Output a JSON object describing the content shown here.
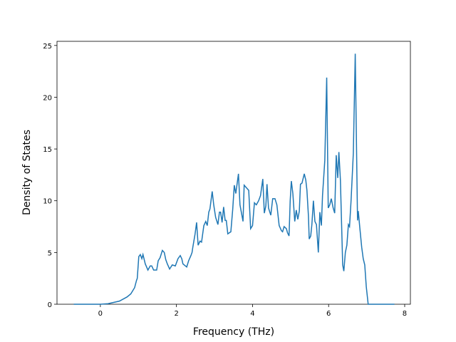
{
  "chart_data": {
    "type": "line",
    "x_label": "Frequency (THz)",
    "y_label": "Density of States",
    "xlim": [
      -1.14,
      8.15
    ],
    "ylim": [
      0,
      25.4
    ],
    "xticks": [
      0,
      2,
      4,
      6,
      8
    ],
    "yticks": [
      0,
      5,
      10,
      15,
      20,
      25
    ],
    "series": [
      {
        "color": "#1f77b4",
        "x": [
          -0.7,
          0,
          0.2,
          0.5,
          0.7,
          0.8,
          0.9,
          0.95,
          0.97,
          1.01,
          1.05,
          1.09,
          1.12,
          1.18,
          1.25,
          1.31,
          1.35,
          1.4,
          1.48,
          1.52,
          1.57,
          1.63,
          1.68,
          1.72,
          1.76,
          1.82,
          1.89,
          1.97,
          2.04,
          2.1,
          2.14,
          2.17,
          2.27,
          2.32,
          2.38,
          2.41,
          2.43,
          2.49,
          2.53,
          2.57,
          2.62,
          2.66,
          2.72,
          2.77,
          2.81,
          2.85,
          2.88,
          2.94,
          2.98,
          3.03,
          3.09,
          3.13,
          3.16,
          3.2,
          3.24,
          3.28,
          3.31,
          3.35,
          3.43,
          3.48,
          3.52,
          3.56,
          3.63,
          3.67,
          3.75,
          3.78,
          3.9,
          3.95,
          4.0,
          4.05,
          4.1,
          4.16,
          4.21,
          4.27,
          4.31,
          4.35,
          4.38,
          4.42,
          4.48,
          4.53,
          4.59,
          4.64,
          4.7,
          4.76,
          4.79,
          4.83,
          4.89,
          4.92,
          4.96,
          4.99,
          5.02,
          5.06,
          5.11,
          5.15,
          5.19,
          5.23,
          5.26,
          5.3,
          5.36,
          5.4,
          5.43,
          5.47,
          5.49,
          5.53,
          5.56,
          5.6,
          5.64,
          5.68,
          5.73,
          5.77,
          5.81,
          5.84,
          5.9,
          5.95,
          5.99,
          6.03,
          6.07,
          6.12,
          6.16,
          6.2,
          6.24,
          6.27,
          6.31,
          6.37,
          6.4,
          6.44,
          6.48,
          6.52,
          6.55,
          6.59,
          6.65,
          6.7,
          6.76,
          6.78,
          6.82,
          6.87,
          6.91,
          6.95,
          6.99,
          7.04,
          7.73
        ],
        "values": [
          0,
          0,
          0.05,
          0.3,
          0.7,
          1.0,
          1.6,
          2.3,
          2.5,
          4.6,
          4.8,
          4.4,
          4.8,
          3.9,
          3.3,
          3.7,
          3.7,
          3.3,
          3.3,
          4.2,
          4.5,
          5.2,
          5.0,
          4.3,
          3.9,
          3.4,
          3.8,
          3.7,
          4.4,
          4.7,
          4.4,
          3.9,
          3.6,
          4.2,
          4.7,
          5.0,
          5.5,
          6.8,
          7.9,
          5.7,
          6.1,
          6.0,
          7.6,
          8.0,
          7.6,
          8.9,
          9.2,
          10.9,
          9.6,
          8.4,
          7.7,
          8.9,
          8.9,
          7.9,
          9.4,
          8.1,
          8.1,
          6.8,
          7.0,
          9.2,
          11.5,
          10.7,
          12.6,
          9.6,
          8.0,
          11.5,
          11.0,
          7.3,
          7.6,
          9.8,
          9.6,
          10.0,
          10.5,
          12.1,
          8.8,
          9.5,
          11.6,
          9.3,
          8.6,
          10.2,
          10.2,
          9.6,
          7.6,
          7.1,
          7.0,
          7.5,
          7.3,
          6.9,
          6.6,
          10.0,
          11.9,
          10.7,
          8.0,
          9.1,
          8.2,
          9.0,
          11.6,
          11.7,
          12.6,
          12.0,
          11.0,
          8.5,
          6.3,
          6.6,
          7.7,
          10.0,
          8.0,
          7.7,
          5.0,
          8.9,
          7.6,
          10.5,
          13.9,
          21.9,
          9.3,
          9.6,
          10.2,
          9.3,
          8.8,
          14.4,
          12.2,
          14.7,
          12.0,
          3.8,
          3.2,
          5.0,
          5.7,
          7.7,
          7.5,
          10.0,
          14.6,
          24.2,
          8.1,
          9.0,
          7.4,
          5.5,
          4.4,
          3.8,
          1.7,
          0,
          0
        ]
      }
    ]
  }
}
